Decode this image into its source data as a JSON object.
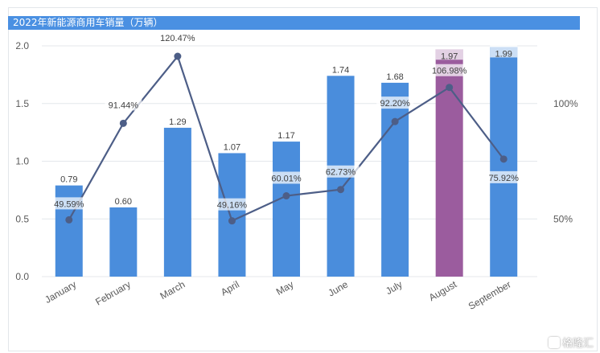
{
  "header": {
    "title": "2022年新能源商用车销量（万辆）"
  },
  "watermark": {
    "label": "格隆汇",
    "icon": "g-logo-icon"
  },
  "colors": {
    "bar": "#4a8ddc",
    "bar_highlight": "#9b5c9e",
    "line": "#4d5e87",
    "grid": "#e4e7eb",
    "title_bg": "#4a90e2",
    "axis_text": "#595959"
  },
  "chart_data": {
    "type": "bar",
    "categories": [
      "January",
      "February",
      "March",
      "April",
      "May",
      "June",
      "July",
      "August",
      "September"
    ],
    "series": [
      {
        "kind": "bar",
        "axis": "left",
        "values": [
          0.79,
          0.6,
          1.29,
          1.07,
          1.17,
          1.74,
          1.68,
          1.97,
          1.99
        ],
        "labels": [
          "0.79",
          "0.60",
          "1.29",
          "1.07",
          "1.17",
          "1.74",
          "1.68",
          "1.97",
          "1.99"
        ],
        "highlight_index": 7
      },
      {
        "kind": "line",
        "axis": "right",
        "values": [
          49.59,
          91.44,
          120.47,
          49.16,
          60.01,
          62.73,
          92.2,
          106.98,
          75.92
        ],
        "labels": [
          "49.59%",
          "91.44%",
          "120.47%",
          "49.16%",
          "60.01%",
          "62.73%",
          "92.20%",
          "106.98%",
          "75.92%"
        ]
      }
    ],
    "left_axis": {
      "ylim": [
        0,
        2.0
      ],
      "ticks": [
        "0.0",
        "0.5",
        "1.0",
        "1.5",
        "2.0"
      ]
    },
    "right_axis": {
      "ylim": [
        25,
        125
      ],
      "ticks": [
        {
          "value": 50,
          "label": "50%"
        },
        {
          "value": 100,
          "label": "100%"
        }
      ]
    },
    "grid": true,
    "legend": "none"
  }
}
